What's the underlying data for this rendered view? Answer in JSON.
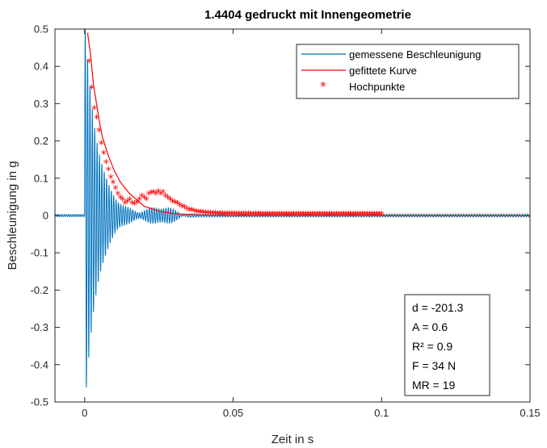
{
  "chart_data": {
    "type": "line",
    "title": "1.4404 gedruckt mit Innengeometrie",
    "xlabel": "Zeit in s",
    "ylabel": "Beschleunigung in g",
    "xlim": [
      -0.01,
      0.15
    ],
    "ylim": [
      -0.5,
      0.5
    ],
    "x_ticks": [
      0,
      0.05,
      0.1,
      0.15
    ],
    "x_tick_labels": [
      "0",
      "0.05",
      "0.1",
      "0.15"
    ],
    "y_ticks": [
      -0.5,
      -0.4,
      -0.3,
      -0.2,
      -0.1,
      0,
      0.1,
      0.2,
      0.3,
      0.4,
      0.5
    ],
    "y_tick_labels": [
      "-0.5",
      "-0.4",
      "-0.3",
      "-0.2",
      "-0.1",
      "0",
      "0.1",
      "0.2",
      "0.3",
      "0.4",
      "0.5"
    ],
    "grid": false,
    "legend_position": "top-right",
    "series": [
      {
        "name": "gemessene Beschleunigung",
        "color": "#0072bd",
        "style": "line",
        "description_params": {
          "onset": 0.0,
          "frequency_hz": 1250,
          "peak_amplitude": 0.5,
          "decay_rate": 201.3
        }
      },
      {
        "name": "gefittete Kurve",
        "color": "#ff0000",
        "style": "line",
        "x": [
          0.001,
          0.002,
          0.003,
          0.004,
          0.005,
          0.006,
          0.008,
          0.01,
          0.012,
          0.015,
          0.02,
          0.025,
          0.03,
          0.04,
          0.05,
          0.07,
          0.1,
          0.15
        ],
        "y": [
          0.49,
          0.43,
          0.35,
          0.3,
          0.25,
          0.21,
          0.16,
          0.12,
          0.09,
          0.06,
          0.025,
          0.012,
          0.005,
          0.001,
          0.0,
          0.0,
          0.0,
          0.0
        ]
      },
      {
        "name": "Hochpunkte",
        "color": "#ff0000",
        "style": "marker",
        "marker": "*",
        "x": [
          0.0015,
          0.0024,
          0.0032,
          0.004,
          0.0048,
          0.0056,
          0.0064,
          0.0072,
          0.008,
          0.0088,
          0.0096,
          0.0104,
          0.0112,
          0.012,
          0.0128,
          0.0136,
          0.0144,
          0.0152,
          0.016,
          0.0168,
          0.0176,
          0.0184,
          0.0192,
          0.02,
          0.0208,
          0.0216,
          0.0224,
          0.0232,
          0.024,
          0.0248,
          0.0256,
          0.0264,
          0.0272,
          0.028,
          0.0288,
          0.0296,
          0.0304,
          0.0312,
          0.032,
          0.0328,
          0.0336,
          0.0344,
          0.0352,
          0.036,
          0.0368,
          0.0376,
          0.0384,
          0.0392,
          0.04,
          0.0408,
          0.0416,
          0.0424,
          0.0432,
          0.044,
          0.0448,
          0.0456,
          0.0464,
          0.0472,
          0.048,
          0.0488,
          0.0496,
          0.0504,
          0.0512,
          0.052,
          0.0528,
          0.0536,
          0.0544,
          0.0552,
          0.056,
          0.0568,
          0.0576,
          0.0584,
          0.0592,
          0.06,
          0.0608,
          0.0616,
          0.0624,
          0.0632,
          0.064,
          0.0648,
          0.0656,
          0.0664,
          0.0672,
          0.068,
          0.0688,
          0.0696,
          0.0704,
          0.0712,
          0.072,
          0.0728,
          0.0736,
          0.0744,
          0.0752,
          0.076,
          0.0768,
          0.0776,
          0.0784,
          0.0792,
          0.08,
          0.0808,
          0.0816,
          0.0824,
          0.0832,
          0.084,
          0.0848,
          0.0856,
          0.0864,
          0.0872,
          0.088,
          0.0888,
          0.0896,
          0.0904,
          0.0912,
          0.092,
          0.0928,
          0.0936,
          0.0944,
          0.0952,
          0.096,
          0.0968,
          0.0976,
          0.0984,
          0.0992,
          0.1
        ],
        "y": [
          0.41,
          0.34,
          0.285,
          0.26,
          0.225,
          0.19,
          0.165,
          0.14,
          0.12,
          0.1,
          0.085,
          0.07,
          0.055,
          0.045,
          0.04,
          0.03,
          0.035,
          0.04,
          0.03,
          0.028,
          0.032,
          0.04,
          0.05,
          0.045,
          0.04,
          0.055,
          0.058,
          0.06,
          0.055,
          0.062,
          0.055,
          0.06,
          0.05,
          0.045,
          0.04,
          0.035,
          0.032,
          0.03,
          0.025,
          0.022,
          0.02,
          0.015,
          0.012,
          0.012,
          0.01,
          0.008,
          0.007,
          0.006,
          0.005,
          0.004,
          0.004,
          0.003,
          0.003,
          0.003,
          0.002,
          0.003,
          0.002,
          0.002,
          0.002,
          0.002,
          0.002,
          0.002,
          0.001,
          0.002,
          0.001,
          0.002,
          0.001,
          0.002,
          0.001,
          0.001,
          0.001,
          0.002,
          0.001,
          0.001,
          0.001,
          0.001,
          0.001,
          0.001,
          0.001,
          0.001,
          0.001,
          0.001,
          0.001,
          0.001,
          0.001,
          0.001,
          0.001,
          0.001,
          0.001,
          0.001,
          0.001,
          0.001,
          0.001,
          0.001,
          0.001,
          0.001,
          0.001,
          0.001,
          0.001,
          0.001,
          0.001,
          0.001,
          0.001,
          0.001,
          0.001,
          0.001,
          0.001,
          0.001,
          0.001,
          0.001,
          0.001,
          0.001,
          0.001,
          0.001,
          0.001,
          0.001,
          0.001,
          0.001,
          0.001,
          0.001,
          0.001,
          0.001,
          0.001,
          0.001
        ]
      }
    ],
    "annotation_box": {
      "lines": [
        "d = -201.3",
        "A = 0.6",
        "R² = 0.9",
        "F = 34 N",
        "MR = 19"
      ]
    }
  }
}
